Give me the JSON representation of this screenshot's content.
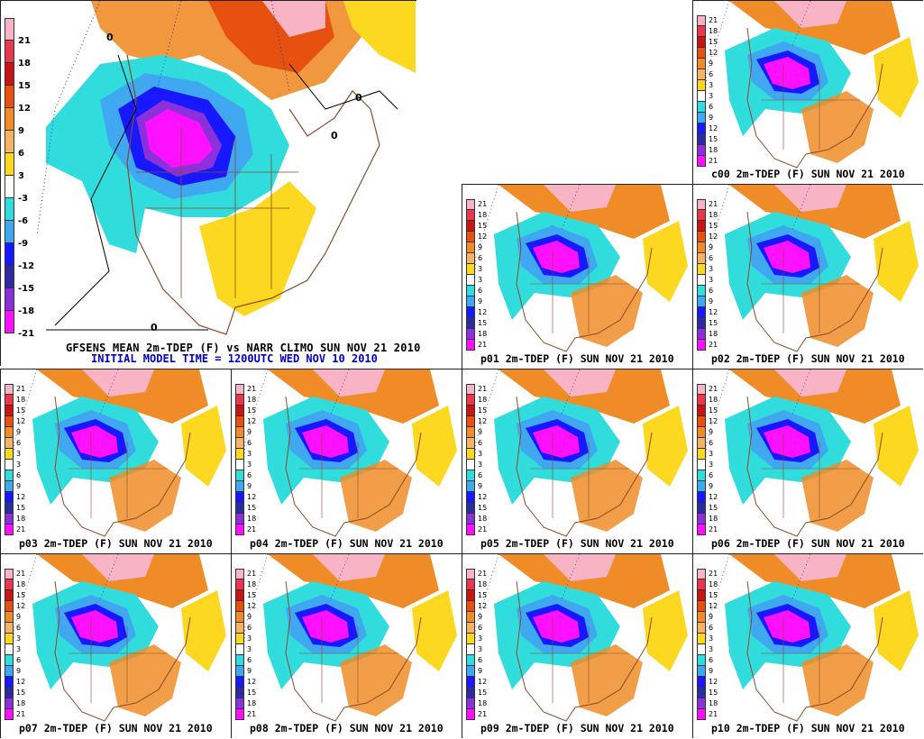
{
  "main_panel": {
    "title": "GFSENS MEAN 2m-TDEP (F) vs NARR CLIMO SUN NOV 21 2010",
    "subtitle": "INITIAL MODEL TIME = 1200UTC WED NOV 10 2010",
    "contour_label": "0"
  },
  "colorbar": {
    "labels": [
      "21",
      "18",
      "15",
      "12",
      "9",
      "6",
      "3",
      "-3",
      "-6",
      "-9",
      "-12",
      "-15",
      "-18",
      "-21"
    ],
    "small_labels": [
      "21",
      "18",
      "15",
      "12",
      "9",
      "6",
      "3",
      "3",
      "6",
      "9",
      "12",
      "15",
      "18",
      "21"
    ],
    "colors": [
      "#f8b4c4",
      "#e8384c",
      "#c81414",
      "#e85010",
      "#f08c28",
      "#f4b464",
      "#fcd820",
      "#ffffff",
      "#30dcdc",
      "#40a8f0",
      "#1818ff",
      "#2c2ca0",
      "#8c30dc",
      "#ff10ff"
    ]
  },
  "members": [
    {
      "id": "c00",
      "caption": "c00 2m-TDEP (F) SUN NOV 21 2010"
    },
    {
      "id": "p01",
      "caption": "p01 2m-TDEP (F) SUN NOV 21 2010"
    },
    {
      "id": "p02",
      "caption": "p02 2m-TDEP (F) SUN NOV 21 2010"
    },
    {
      "id": "p03",
      "caption": "p03 2m-TDEP (F) SUN NOV 21 2010"
    },
    {
      "id": "p04",
      "caption": "p04 2m-TDEP (F) SUN NOV 21 2010"
    },
    {
      "id": "p05",
      "caption": "p05 2m-TDEP (F) SUN NOV 21 2010"
    },
    {
      "id": "p06",
      "caption": "p06 2m-TDEP (F) SUN NOV 21 2010"
    },
    {
      "id": "p07",
      "caption": "p07 2m-TDEP (F) SUN NOV 21 2010"
    },
    {
      "id": "p08",
      "caption": "p08 2m-TDEP (F) SUN NOV 21 2010"
    },
    {
      "id": "p09",
      "caption": "p09 2m-TDEP (F) SUN NOV 21 2010"
    },
    {
      "id": "p10",
      "caption": "p10 2m-TDEP (F) SUN NOV 21 2010"
    }
  ]
}
